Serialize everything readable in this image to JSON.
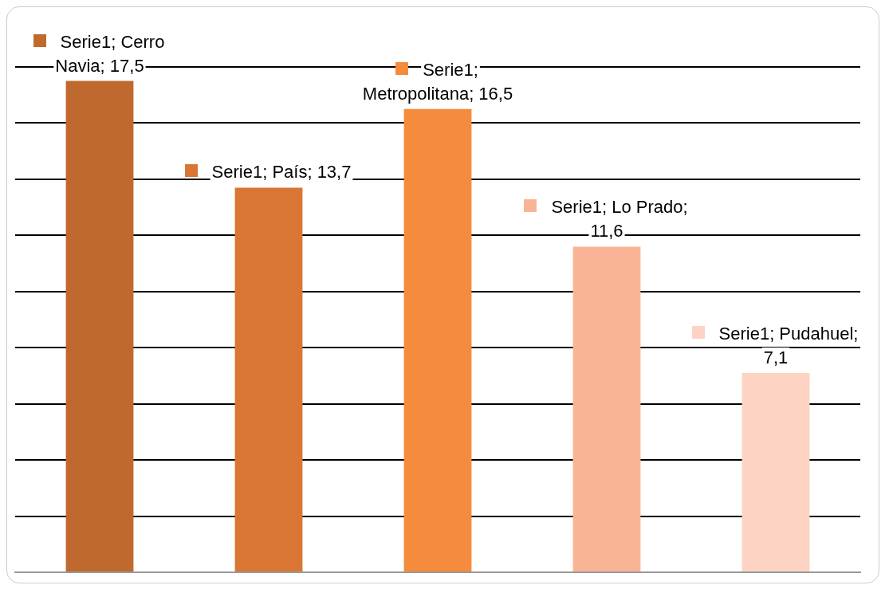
{
  "chart_data": {
    "type": "bar",
    "categories": [
      null,
      null,
      null,
      null,
      null
    ],
    "series": [
      {
        "colors": [
          "#c0692e",
          "#d97634",
          "#f58b3c",
          "#f9b496",
          "#fdd3c4"
        ],
        "values": [
          17.5,
          13.7,
          16.5,
          11.6,
          7.1
        ],
        "value_labels": [
          "Serie1; Cerro Navia; 17,5",
          "Serie1; País; 13,7",
          "Serie1; Metropolitana; 16,5",
          "Serie1; Lo Prado; 11,6",
          "Serie1; Pudahuel; 7,1"
        ]
      }
    ],
    "grid": "y",
    "tick_labels": false,
    "legend": false
  }
}
